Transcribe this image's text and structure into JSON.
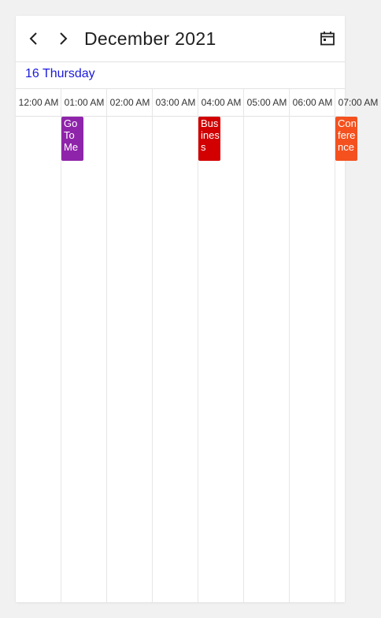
{
  "header": {
    "prev_icon": "chevron-left-icon",
    "next_icon": "chevron-right-icon",
    "month_title": "December 2021",
    "today_icon": "calendar-today-icon"
  },
  "day": {
    "label": "16 Thursday",
    "color": "#1a1adc"
  },
  "timeline": {
    "slots": [
      "12:00 AM",
      "01:00 AM",
      "02:00 AM",
      "03:00 AM",
      "04:00 AM",
      "05:00 AM",
      "06:00 AM",
      "07:00 AM"
    ]
  },
  "appointments": [
    {
      "subject": "Go To Me",
      "color": "#8e24aa"
    },
    {
      "subject": "Business",
      "color": "#d20000"
    },
    {
      "subject": "Conference",
      "color": "#f4511e"
    }
  ]
}
